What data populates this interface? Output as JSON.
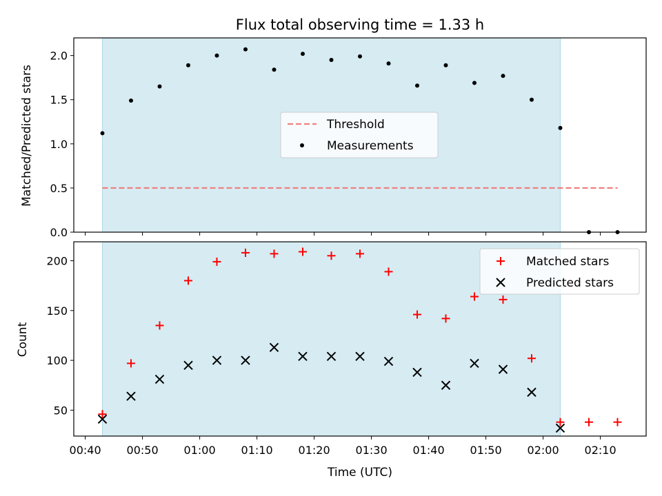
{
  "chart_data": [
    {
      "type": "scatter",
      "title": "Flux total observing time = 1.33 h",
      "xlabel": "",
      "ylabel": "Matched/Predicted stars",
      "xlim": [
        "00:38",
        "02:18"
      ],
      "ylim": [
        0,
        2.2
      ],
      "yticks": [
        0.0,
        0.5,
        1.0,
        1.5,
        2.0
      ],
      "ytick_labels": [
        "0.0",
        "0.5",
        "1.0",
        "1.5",
        "2.0"
      ],
      "shaded_span": [
        "00:43",
        "02:03"
      ],
      "legend": {
        "placement": "center",
        "entries": [
          "Threshold",
          "Measurements"
        ]
      },
      "series": [
        {
          "name": "Threshold",
          "style": "dashed-line",
          "color": "#f08080",
          "x": [
            "00:43",
            "02:13"
          ],
          "y": [
            0.5,
            0.5
          ]
        },
        {
          "name": "Measurements",
          "style": "dot",
          "color": "#000000",
          "x": [
            "00:43",
            "00:48",
            "00:53",
            "00:58",
            "01:03",
            "01:08",
            "01:13",
            "01:18",
            "01:23",
            "01:28",
            "01:33",
            "01:38",
            "01:43",
            "01:48",
            "01:53",
            "01:58",
            "02:03",
            "02:08",
            "02:13"
          ],
          "y": [
            1.12,
            1.49,
            1.65,
            1.89,
            2.0,
            2.07,
            1.84,
            2.02,
            1.95,
            1.99,
            1.91,
            1.66,
            1.89,
            1.69,
            1.77,
            1.5,
            1.18,
            0.0,
            0.0
          ]
        }
      ]
    },
    {
      "type": "scatter",
      "title": "",
      "xlabel": "Time (UTC)",
      "ylabel": "Count",
      "xlim": [
        "00:38",
        "02:18"
      ],
      "ylim": [
        24,
        219
      ],
      "yticks": [
        50,
        100,
        150,
        200
      ],
      "ytick_labels": [
        "50",
        "100",
        "150",
        "200"
      ],
      "xticks": [
        "00:40",
        "00:50",
        "01:00",
        "01:10",
        "01:20",
        "01:30",
        "01:40",
        "01:50",
        "02:00",
        "02:10"
      ],
      "xtick_labels": [
        "00:40",
        "00:50",
        "01:00",
        "01:10",
        "01:20",
        "01:30",
        "01:40",
        "01:50",
        "02:00",
        "02:10"
      ],
      "shaded_span": [
        "00:43",
        "02:03"
      ],
      "legend": {
        "placement": "top-right",
        "entries": [
          "Matched stars",
          "Predicted stars"
        ]
      },
      "series": [
        {
          "name": "Matched stars",
          "marker": "+",
          "color": "#ff0000",
          "x": [
            "00:43",
            "00:48",
            "00:53",
            "00:58",
            "01:03",
            "01:08",
            "01:13",
            "01:18",
            "01:23",
            "01:28",
            "01:33",
            "01:38",
            "01:43",
            "01:48",
            "01:53",
            "01:58",
            "02:03",
            "02:08",
            "02:13"
          ],
          "y": [
            46,
            97,
            135,
            180,
            199,
            208,
            207,
            209,
            205,
            207,
            189,
            146,
            142,
            164,
            161,
            102,
            38,
            38,
            38
          ]
        },
        {
          "name": "Predicted stars",
          "marker": "x",
          "color": "#000000",
          "x": [
            "00:43",
            "00:48",
            "00:53",
            "00:58",
            "01:03",
            "01:08",
            "01:13",
            "01:18",
            "01:23",
            "01:28",
            "01:33",
            "01:38",
            "01:43",
            "01:48",
            "01:53",
            "01:58",
            "02:03"
          ],
          "y": [
            41,
            64,
            81,
            95,
            100,
            100,
            113,
            104,
            104,
            104,
            99,
            88,
            75,
            97,
            91,
            68,
            32
          ]
        }
      ]
    }
  ],
  "colors": {
    "shade": "#add8e6",
    "threshold": "#f08080",
    "matched": "#ff0000",
    "predicted": "#000000"
  }
}
